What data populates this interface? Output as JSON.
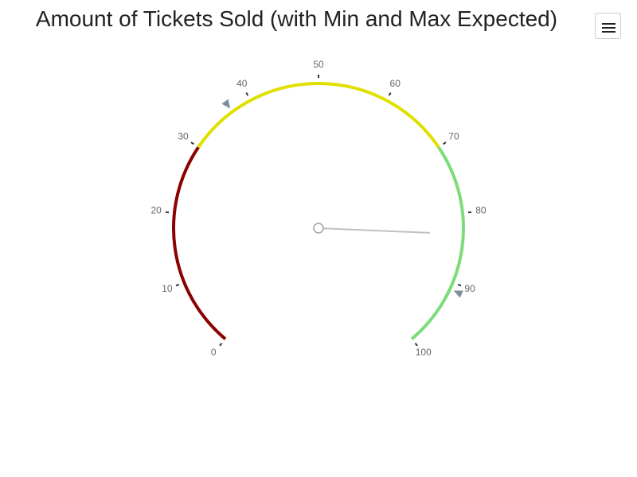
{
  "title": "Amount of Tickets Sold (with Min and Max Expected)",
  "menu": {
    "icon": "hamburger-menu-icon"
  },
  "chart_data": {
    "type": "gauge",
    "title": "Amount of Tickets Sold (with Min and Max Expected)",
    "min": 0,
    "max": 100,
    "tick_interval": 10,
    "tick_labels": [
      "0",
      "10",
      "20",
      "30",
      "40",
      "50",
      "60",
      "70",
      "80",
      "90",
      "100"
    ],
    "value": 83,
    "min_expected": 37,
    "max_expected": 91,
    "bands": [
      {
        "from": 0,
        "to": 30,
        "color": "#8b0000"
      },
      {
        "from": 30,
        "to": 70,
        "color": "#e0e000"
      },
      {
        "from": 70,
        "to": 100,
        "color": "#7ddc7a"
      }
    ],
    "needle_color": "#c0c0c0",
    "marker_color": "#7f8c99"
  }
}
